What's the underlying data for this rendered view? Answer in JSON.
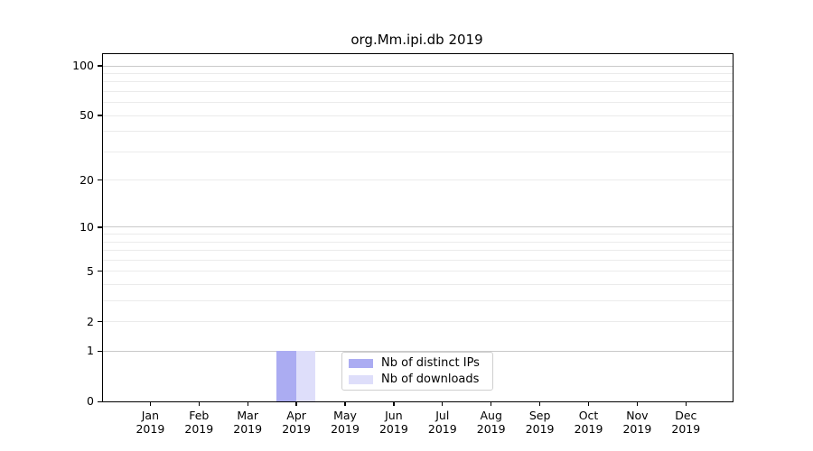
{
  "title": "org.Mm.ipi.db 2019",
  "colors": {
    "distinct_ips": "#abacf2",
    "downloads": "#dedefa",
    "grid_minor": "#ebebeb",
    "grid_major": "#c9c9c9",
    "axis": "#000000",
    "legend_border": "#cfcfcf",
    "background": "#ffffff"
  },
  "chart_data": {
    "type": "bar",
    "title": "org.Mm.ipi.db 2019",
    "categories": [
      {
        "month": "Jan",
        "year": "2019"
      },
      {
        "month": "Feb",
        "year": "2019"
      },
      {
        "month": "Mar",
        "year": "2019"
      },
      {
        "month": "Apr",
        "year": "2019"
      },
      {
        "month": "May",
        "year": "2019"
      },
      {
        "month": "Jun",
        "year": "2019"
      },
      {
        "month": "Jul",
        "year": "2019"
      },
      {
        "month": "Aug",
        "year": "2019"
      },
      {
        "month": "Sep",
        "year": "2019"
      },
      {
        "month": "Oct",
        "year": "2019"
      },
      {
        "month": "Nov",
        "year": "2019"
      },
      {
        "month": "Dec",
        "year": "2019"
      }
    ],
    "series": [
      {
        "name": "Nb of distinct IPs",
        "color": "#abacf2",
        "values": [
          0,
          0,
          0,
          1,
          0,
          0,
          0,
          0,
          0,
          0,
          0,
          0
        ]
      },
      {
        "name": "Nb of downloads",
        "color": "#dedefa",
        "values": [
          0,
          0,
          0,
          1,
          0,
          0,
          0,
          0,
          0,
          0,
          0,
          0
        ]
      }
    ],
    "xlabel": "",
    "ylabel": "",
    "y_scale": "log1p",
    "ylim": [
      0,
      116
    ],
    "ytick_labels": [
      0,
      1,
      2,
      5,
      10,
      20,
      50,
      100
    ],
    "grid_minor_values": [
      2,
      3,
      4,
      5,
      6,
      7,
      8,
      9,
      20,
      30,
      40,
      50,
      60,
      70,
      80,
      90
    ],
    "grid_major_values": [
      1,
      10,
      100
    ],
    "grid": "horizontal",
    "legend_position": "bottom-center-inside"
  }
}
